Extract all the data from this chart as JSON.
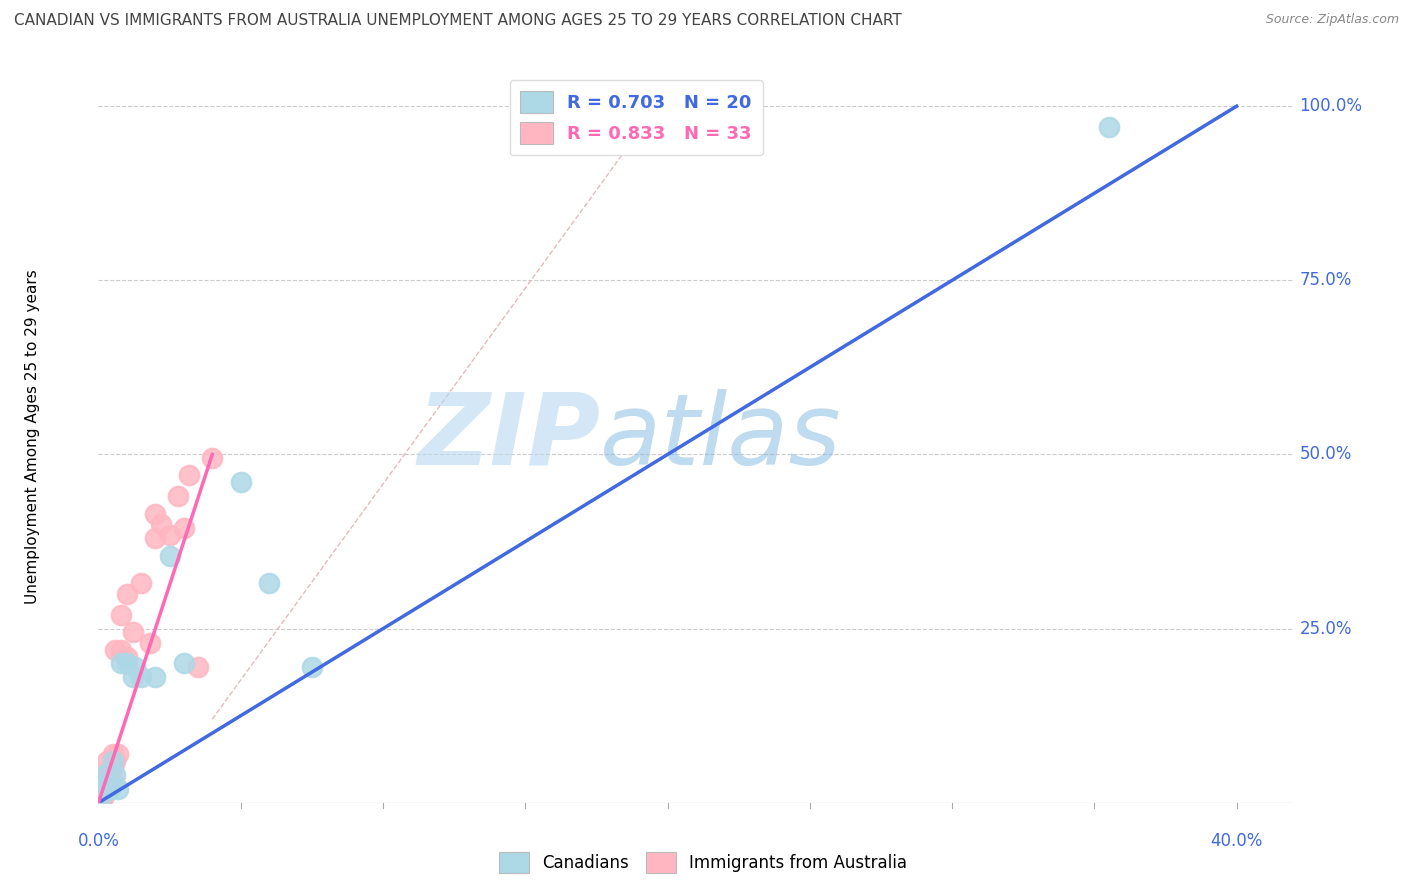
{
  "title": "CANADIAN VS IMMIGRANTS FROM AUSTRALIA UNEMPLOYMENT AMONG AGES 25 TO 29 YEARS CORRELATION CHART",
  "source": "Source: ZipAtlas.com",
  "ylabel": "Unemployment Among Ages 25 to 29 years",
  "legend_blue_label": "R = 0.703   N = 20",
  "legend_pink_label": "R = 0.833   N = 33",
  "legend_bottom_blue": "Canadians",
  "legend_bottom_pink": "Immigrants from Australia",
  "blue_scatter_color": "#ADD8E6",
  "pink_scatter_color": "#FFB6C1",
  "blue_line_color": "#4169E1",
  "pink_line_color": "#FF69B4",
  "ref_line_color": "#DDAAAA",
  "watermark_color": "#D0E8F8",
  "ytick_color": "#4169E1",
  "xtick_color": "#4169E1",
  "canadians_x": [
    0.001,
    0.002,
    0.002,
    0.003,
    0.004,
    0.005,
    0.006,
    0.007,
    0.008,
    0.01,
    0.012,
    0.013,
    0.015,
    0.02,
    0.025,
    0.03,
    0.05,
    0.06,
    0.075,
    0.355
  ],
  "canadians_y": [
    0.01,
    0.02,
    0.04,
    0.03,
    0.02,
    0.06,
    0.04,
    0.02,
    0.2,
    0.2,
    0.18,
    0.195,
    0.18,
    0.18,
    0.355,
    0.2,
    0.46,
    0.315,
    0.195,
    0.97
  ],
  "immigrants_x": [
    0.001,
    0.001,
    0.001,
    0.002,
    0.002,
    0.002,
    0.003,
    0.003,
    0.003,
    0.004,
    0.004,
    0.005,
    0.005,
    0.005,
    0.006,
    0.006,
    0.007,
    0.008,
    0.008,
    0.01,
    0.01,
    0.012,
    0.015,
    0.018,
    0.02,
    0.02,
    0.022,
    0.025,
    0.028,
    0.03,
    0.032,
    0.035,
    0.04
  ],
  "immigrants_y": [
    0.005,
    0.01,
    0.015,
    0.01,
    0.02,
    0.03,
    0.02,
    0.04,
    0.06,
    0.03,
    0.05,
    0.03,
    0.05,
    0.07,
    0.06,
    0.22,
    0.07,
    0.22,
    0.27,
    0.21,
    0.3,
    0.245,
    0.315,
    0.23,
    0.38,
    0.415,
    0.4,
    0.385,
    0.44,
    0.395,
    0.47,
    0.195,
    0.495
  ],
  "blue_line_x": [
    0.0,
    0.4
  ],
  "blue_line_y": [
    0.0,
    1.0
  ],
  "pink_line_x": [
    0.0,
    0.04
  ],
  "pink_line_y": [
    0.0,
    0.5
  ],
  "ref_line_x": [
    0.04,
    0.2
  ],
  "ref_line_y": [
    0.12,
    1.02
  ],
  "xlim": [
    0,
    0.42
  ],
  "ylim": [
    0,
    1.05
  ],
  "yticks": [
    0,
    0.25,
    0.5,
    0.75,
    1.0
  ],
  "ytick_labels": [
    "",
    "25.0%",
    "50.0%",
    "75.0%",
    "100.0%"
  ],
  "xtick_labels_pos": [
    0.0,
    0.4
  ],
  "xtick_labels_text": [
    "0.0%",
    "40.0%"
  ]
}
